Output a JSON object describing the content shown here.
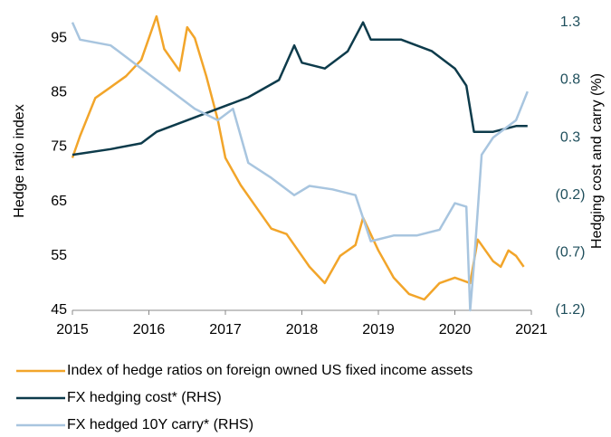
{
  "chart_data": {
    "type": "line",
    "y_label": "Hedge ratio index",
    "y2_label": "Hedging cost and carry (%)",
    "xlim": [
      2015,
      2021
    ],
    "xticks": [
      2015,
      2016,
      2017,
      2018,
      2019,
      2020,
      2021
    ],
    "ylim": [
      45,
      100
    ],
    "yticks": [
      45,
      55,
      65,
      75,
      85,
      95
    ],
    "y2lim": [
      -1.2,
      1.4
    ],
    "y2ticks": [
      {
        "value": -1.2,
        "label": "(1.2)"
      },
      {
        "value": -0.7,
        "label": "(0.7)"
      },
      {
        "value": -0.2,
        "label": "(0.2)"
      },
      0.3,
      0.8,
      1.3
    ],
    "legend": "bottom",
    "series": [
      {
        "name": "Index of hedge ratios on foreign owned US fixed income assets",
        "color": "#f2a52a",
        "x": [
          2015.0,
          2015.1,
          2015.3,
          2015.5,
          2015.7,
          2015.9,
          2016.1,
          2016.2,
          2016.4,
          2016.5,
          2016.6,
          2016.75,
          2016.9,
          2017.0,
          2017.2,
          2017.4,
          2017.6,
          2017.8,
          2018.0,
          2018.1,
          2018.3,
          2018.5,
          2018.7,
          2018.8,
          2019.0,
          2019.2,
          2019.4,
          2019.6,
          2019.8,
          2020.0,
          2020.2,
          2020.3,
          2020.5,
          2020.6,
          2020.7,
          2020.8,
          2020.9
        ],
        "values": [
          73,
          77,
          84,
          86,
          88,
          91,
          99,
          93,
          89,
          97,
          95,
          88,
          80,
          73,
          68,
          64,
          60,
          59,
          55,
          53,
          50,
          55,
          57,
          62,
          56,
          51,
          48,
          47,
          50,
          51,
          50,
          58,
          54,
          53,
          56,
          55,
          53
        ]
      },
      {
        "name": "FX hedging cost* (RHS)",
        "color": "#0d3b4b",
        "axis": "y2",
        "x": [
          2015.0,
          2015.5,
          2015.9,
          2016.1,
          2016.5,
          2016.9,
          2017.3,
          2017.7,
          2017.9,
          2018.0,
          2018.3,
          2018.6,
          2018.8,
          2018.9,
          2019.3,
          2019.7,
          2020.0,
          2020.15,
          2020.25,
          2020.5,
          2020.8,
          2020.95
        ],
        "values": [
          0.15,
          0.2,
          0.25,
          0.35,
          0.45,
          0.55,
          0.65,
          0.8,
          1.1,
          0.95,
          0.9,
          1.05,
          1.3,
          1.15,
          1.15,
          1.05,
          0.9,
          0.75,
          0.35,
          0.35,
          0.4,
          0.4
        ]
      },
      {
        "name": "FX hedged 10Y carry* (RHS)",
        "color": "#a8c5df",
        "axis": "y2",
        "x": [
          2015.0,
          2015.1,
          2015.5,
          2015.9,
          2016.2,
          2016.6,
          2016.9,
          2017.1,
          2017.3,
          2017.6,
          2017.9,
          2018.1,
          2018.4,
          2018.7,
          2018.9,
          2019.2,
          2019.5,
          2019.8,
          2020.0,
          2020.15,
          2020.2,
          2020.25,
          2020.35,
          2020.5,
          2020.8,
          2020.95
        ],
        "values": [
          1.3,
          1.15,
          1.1,
          0.9,
          0.75,
          0.55,
          0.45,
          0.55,
          0.08,
          -0.05,
          -0.2,
          -0.12,
          -0.15,
          -0.2,
          -0.6,
          -0.55,
          -0.55,
          -0.5,
          -0.27,
          -0.3,
          -1.2,
          -0.8,
          0.15,
          0.3,
          0.45,
          0.7
        ]
      }
    ]
  }
}
